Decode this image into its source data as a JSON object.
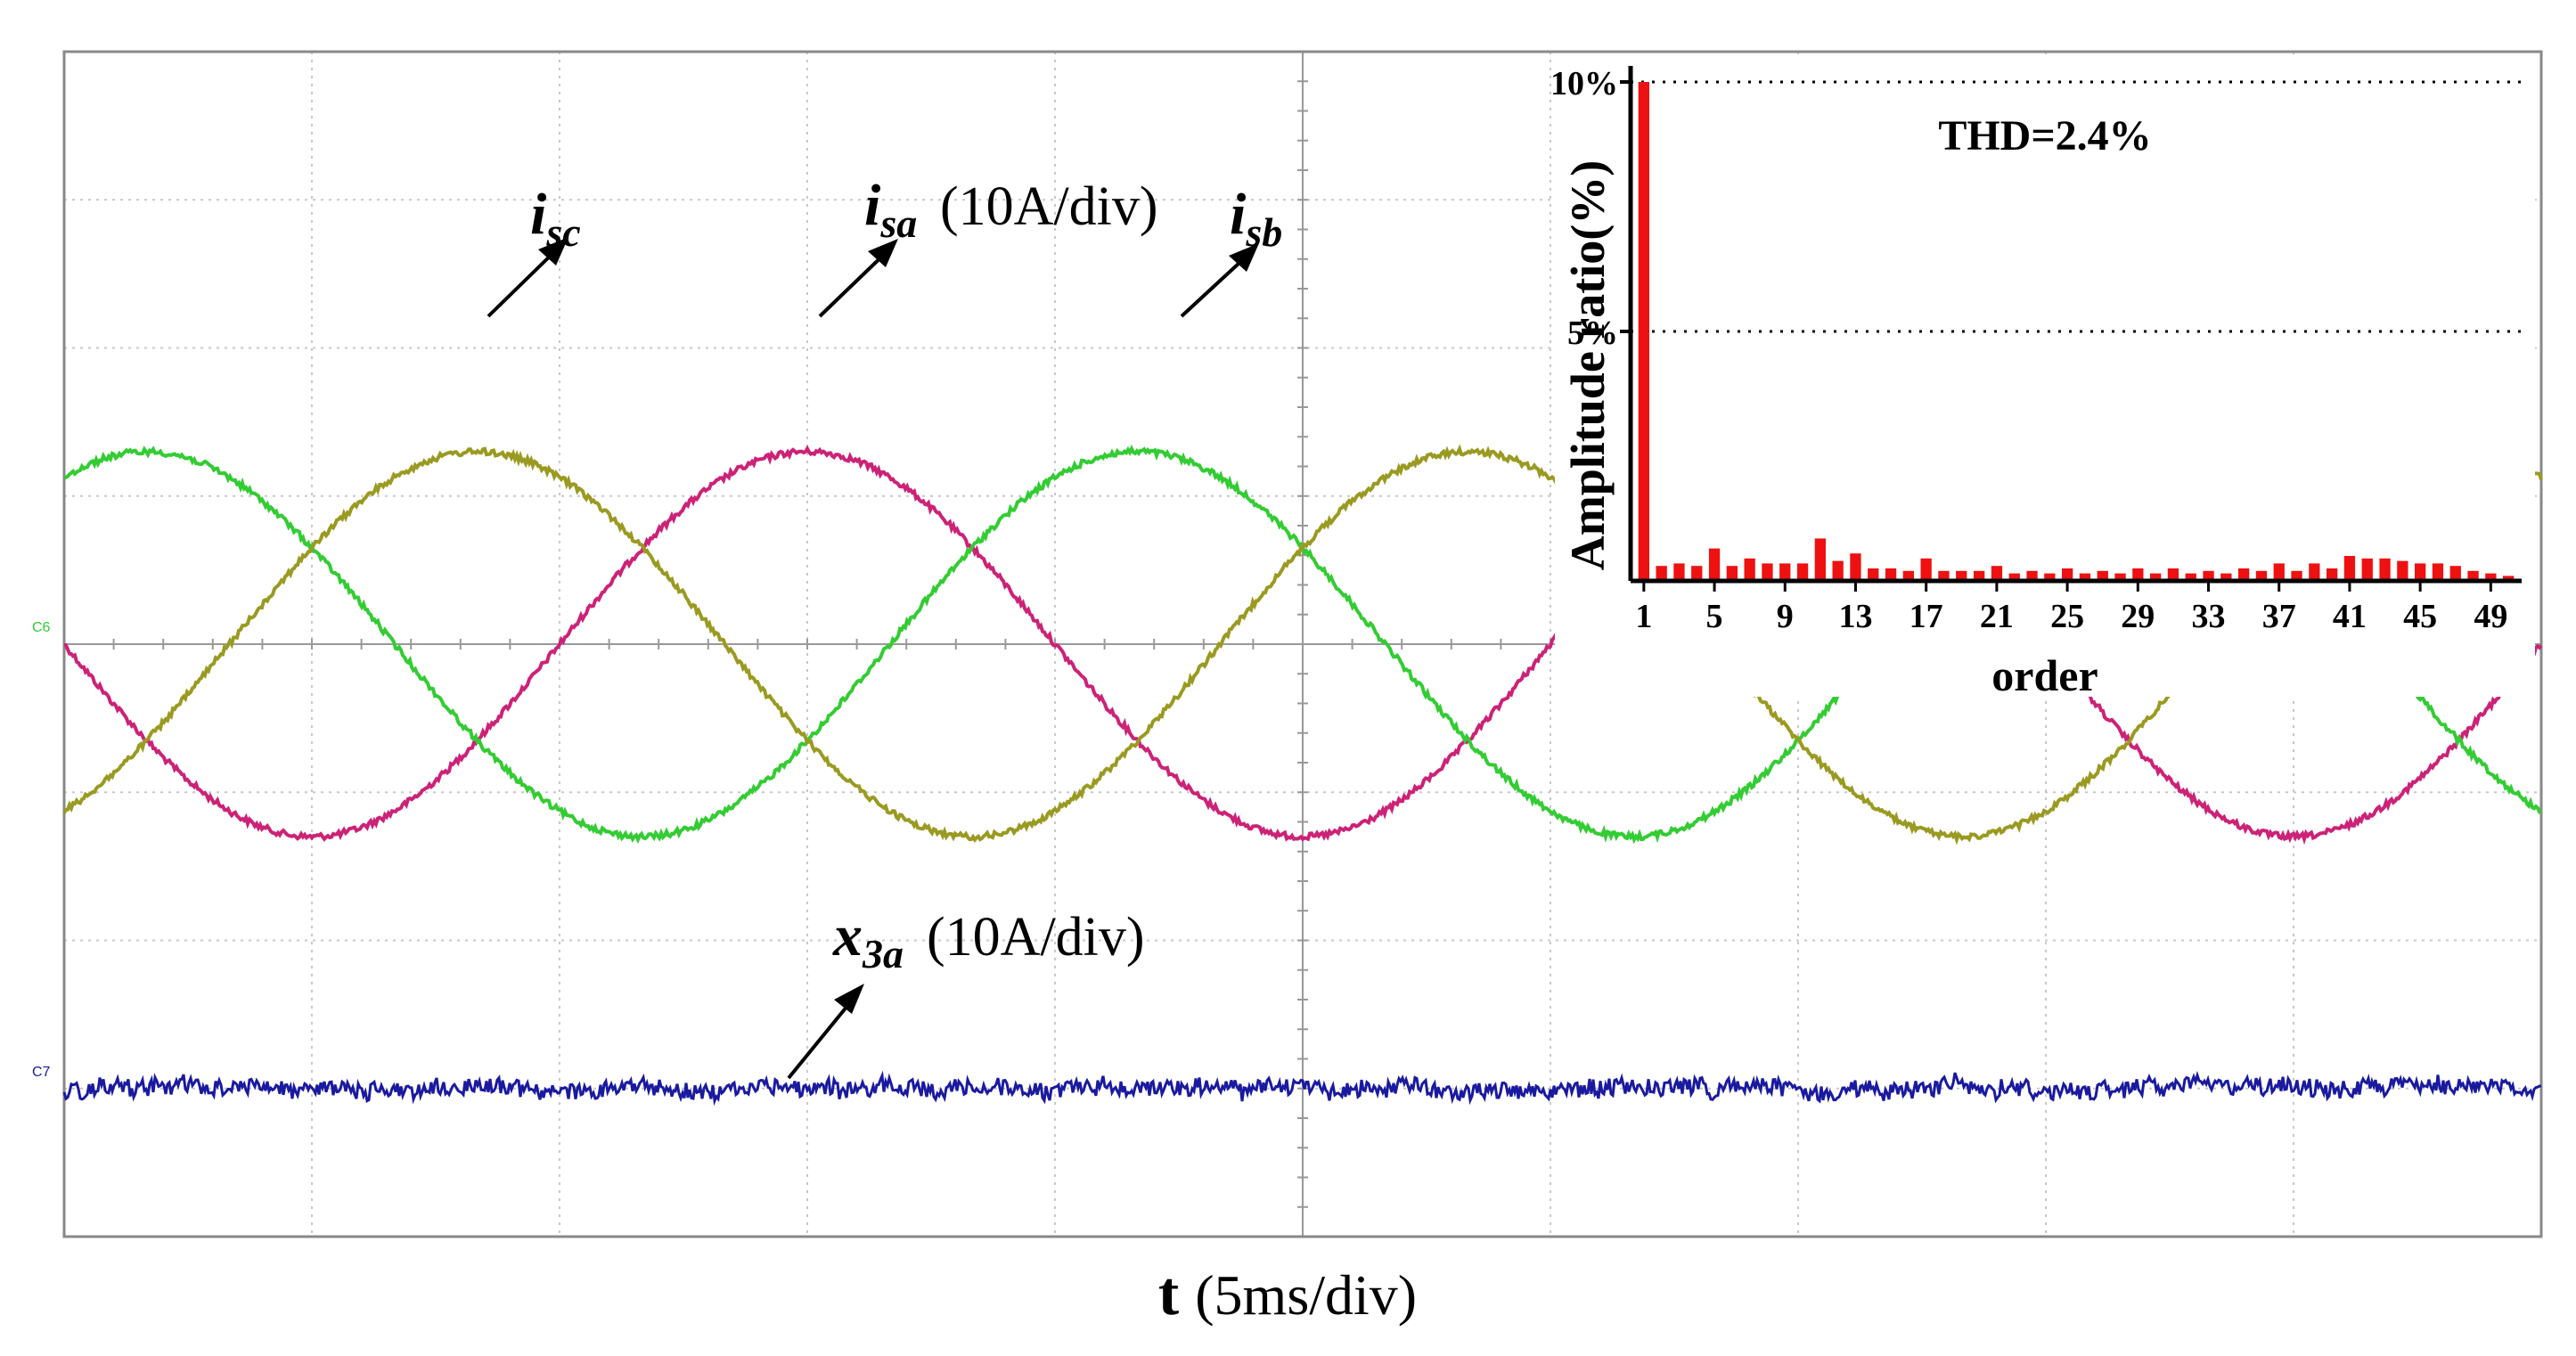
{
  "chart_data": [
    {
      "type": "line",
      "xlabel_symbol": "t",
      "xlabel_unit": "(5ms/div)",
      "x_divisions": 10,
      "y_divisions": 8,
      "channel_markers": [
        {
          "name": "C6",
          "color": "#33cc33"
        },
        {
          "name": "C7",
          "color": "#1a1aa0"
        }
      ],
      "phase_currents": {
        "scale": "(10A/div)",
        "offset_div": 0,
        "amplitude_div": 1.3,
        "period_div": 4,
        "series": [
          {
            "name": "i",
            "subscript": "sa",
            "color": "#cc2277",
            "phase_deg": 180
          },
          {
            "name": "i",
            "subscript": "sb",
            "color": "#33cc33",
            "phase_deg": 60
          },
          {
            "name": "i",
            "subscript": "sc",
            "color": "#9a9a22",
            "phase_deg": 300
          }
        ]
      },
      "x3a": {
        "name": "x",
        "subscript": "3a",
        "scale": "(10A/div)",
        "color": "#1a1aa0",
        "offset_div": -3,
        "noise_amplitude_div": 0.1
      }
    },
    {
      "type": "bar",
      "title": "THD=2.4%",
      "ylabel": "Amplitude ratio(%)",
      "xlabel": "order",
      "x_tick_labels": [
        "1",
        "5",
        "9",
        "13",
        "17",
        "21",
        "25",
        "29",
        "33",
        "37",
        "41",
        "45",
        "49"
      ],
      "y_tick_labels": [
        "10%",
        "5%"
      ],
      "ylim": [
        0,
        10
      ],
      "bar_color": "#ee1111",
      "orders": [
        1,
        2,
        3,
        4,
        5,
        6,
        7,
        8,
        9,
        10,
        11,
        12,
        13,
        14,
        15,
        16,
        17,
        18,
        19,
        20,
        21,
        22,
        23,
        24,
        25,
        26,
        27,
        28,
        29,
        30,
        31,
        32,
        33,
        34,
        35,
        36,
        37,
        38,
        39,
        40,
        41,
        42,
        43,
        44,
        45,
        46,
        47,
        48,
        49,
        50
      ],
      "values": [
        10.0,
        0.3,
        0.35,
        0.3,
        0.65,
        0.3,
        0.45,
        0.35,
        0.35,
        0.35,
        0.85,
        0.4,
        0.55,
        0.25,
        0.25,
        0.2,
        0.45,
        0.2,
        0.2,
        0.2,
        0.3,
        0.15,
        0.2,
        0.15,
        0.25,
        0.15,
        0.2,
        0.15,
        0.25,
        0.15,
        0.25,
        0.15,
        0.2,
        0.15,
        0.25,
        0.2,
        0.35,
        0.2,
        0.35,
        0.25,
        0.5,
        0.45,
        0.45,
        0.4,
        0.35,
        0.35,
        0.3,
        0.2,
        0.15,
        0.1
      ]
    }
  ]
}
